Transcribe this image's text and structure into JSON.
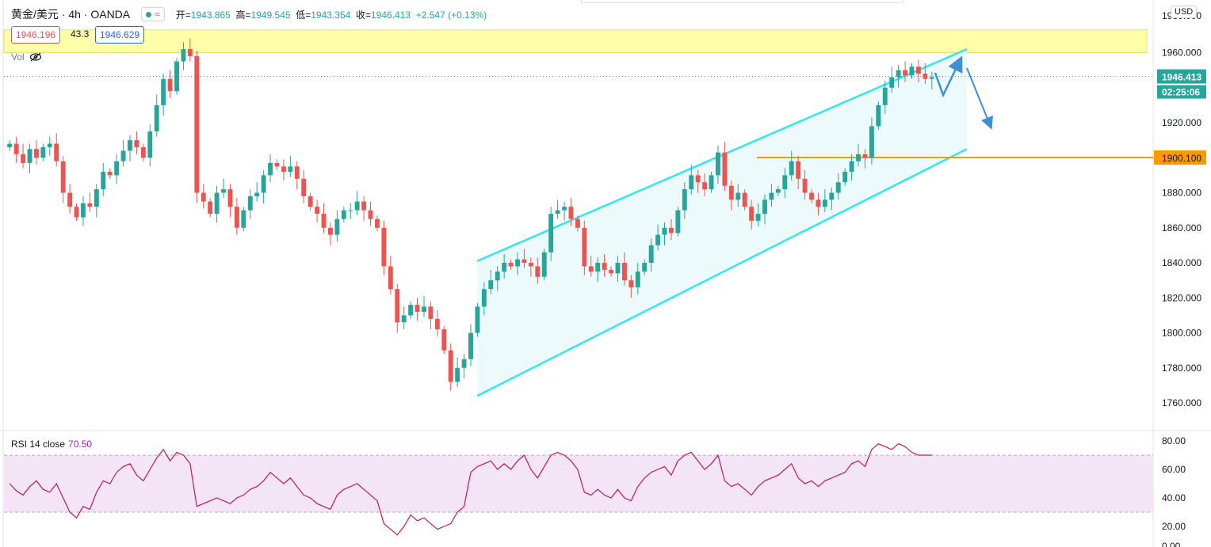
{
  "header": {
    "symbol": "黄金/美元 · 4h · OANDA",
    "open_label": "开=",
    "open": "1943.865",
    "high_label": "高=",
    "high": "1949.545",
    "low_label": "低=",
    "low": "1943.354",
    "close_label": "收=",
    "close": "1946.413",
    "change": "+2.547 (+0.13%)",
    "status_icon": "green-dot-icon",
    "wave_icon": "≈"
  },
  "bid_ask": {
    "bid": "1946.196",
    "spread": "43.3",
    "ask": "1946.629"
  },
  "volume": {
    "label": "Vol",
    "icon": "eye-hidden-icon"
  },
  "price_axis": {
    "currency": "USD",
    "ticks": [
      "1960.000",
      "1940.000",
      "1920.000",
      "1900.000",
      "1880.000",
      "1860.000",
      "1840.000",
      "1820.000",
      "1800.000",
      "1780.000",
      "1760.000"
    ],
    "top_tick_partial": "1980.000",
    "current_price": "1946.413",
    "countdown": "02:25:06",
    "hline_price": "1900.100"
  },
  "rsi": {
    "label": "RSI 14 close",
    "value": "70.50",
    "ticks": [
      "80.00",
      "60.00",
      "40.00",
      "20.00"
    ],
    "bottom_tick_partial": "0.00",
    "upper_band": 70,
    "lower_band": 30
  },
  "colors": {
    "up": "#26a69a",
    "down": "#ef5350",
    "channel": "#31e8f0",
    "hline": "#ff9800",
    "zone": "#ffff99",
    "rsi_line": "#c2185b",
    "rsi_band": "#f3e5f5",
    "arrow": "#3d8fd6",
    "last_price_bg": "#26a69a"
  },
  "chart_data": {
    "type": "candlestick",
    "instrument": "黄金/美元",
    "timeframe": "4h",
    "ylim": [
      1755,
      1982
    ],
    "support_line": 1900.1,
    "resistance_zone": [
      1960,
      1973
    ],
    "channel_upper": [
      [
        1841,
        1962
      ]
    ],
    "channel_lower": [
      [
        1764,
        1905
      ]
    ],
    "rsi_range": [
      10,
      85
    ],
    "series": [
      {
        "name": "price_path",
        "values": [
          1908,
          1902,
          1897,
          1905,
          1900,
          1906,
          1908,
          1898,
          1880,
          1872,
          1866,
          1874,
          1872,
          1882,
          1892,
          1890,
          1898,
          1904,
          1910,
          1906,
          1900,
          1915,
          1930,
          1945,
          1938,
          1955,
          1962,
          1958,
          1880,
          1875,
          1868,
          1880,
          1882,
          1872,
          1860,
          1870,
          1878,
          1880,
          1890,
          1897,
          1895,
          1892,
          1895,
          1888,
          1878,
          1872,
          1868,
          1860,
          1856,
          1865,
          1870,
          1870,
          1875,
          1870,
          1865,
          1860,
          1838,
          1825,
          1806,
          1810,
          1816,
          1812,
          1815,
          1808,
          1802,
          1790,
          1772,
          1780,
          1785,
          1800,
          1815,
          1825,
          1830,
          1835,
          1840,
          1838,
          1842,
          1840,
          1838,
          1832,
          1846,
          1868,
          1870,
          1872,
          1865,
          1860,
          1838,
          1835,
          1840,
          1836,
          1834,
          1840,
          1830,
          1826,
          1835,
          1840,
          1850,
          1856,
          1860,
          1857,
          1870,
          1882,
          1890,
          1886,
          1882,
          1890,
          1903,
          1884,
          1876,
          1880,
          1872,
          1864,
          1868,
          1876,
          1880,
          1882,
          1890,
          1898,
          1888,
          1880,
          1876,
          1872,
          1876,
          1880,
          1886,
          1892,
          1898,
          1902,
          1900,
          1918,
          1930,
          1940,
          1946,
          1950,
          1947,
          1952,
          1948,
          1945,
          1946
        ]
      },
      {
        "name": "rsi",
        "values": [
          50,
          45,
          42,
          48,
          52,
          46,
          44,
          50,
          40,
          30,
          26,
          34,
          32,
          44,
          52,
          50,
          58,
          62,
          64,
          56,
          52,
          60,
          68,
          74,
          66,
          72,
          70,
          64,
          34,
          36,
          38,
          40,
          38,
          36,
          40,
          42,
          46,
          48,
          52,
          58,
          54,
          50,
          54,
          48,
          42,
          40,
          36,
          34,
          32,
          42,
          46,
          48,
          50,
          46,
          42,
          38,
          22,
          18,
          14,
          20,
          28,
          24,
          26,
          22,
          18,
          20,
          22,
          30,
          34,
          58,
          62,
          64,
          66,
          60,
          64,
          60,
          66,
          70,
          60,
          54,
          62,
          70,
          72,
          70,
          66,
          60,
          44,
          42,
          46,
          42,
          40,
          46,
          40,
          38,
          48,
          54,
          58,
          60,
          62,
          56,
          66,
          70,
          72,
          66,
          60,
          64,
          70,
          52,
          48,
          50,
          46,
          42,
          48,
          52,
          54,
          56,
          60,
          64,
          54,
          50,
          52,
          48,
          52,
          54,
          56,
          58,
          64,
          66,
          62,
          74,
          78,
          76,
          74,
          78,
          76,
          72,
          70,
          70,
          70
        ]
      }
    ]
  }
}
